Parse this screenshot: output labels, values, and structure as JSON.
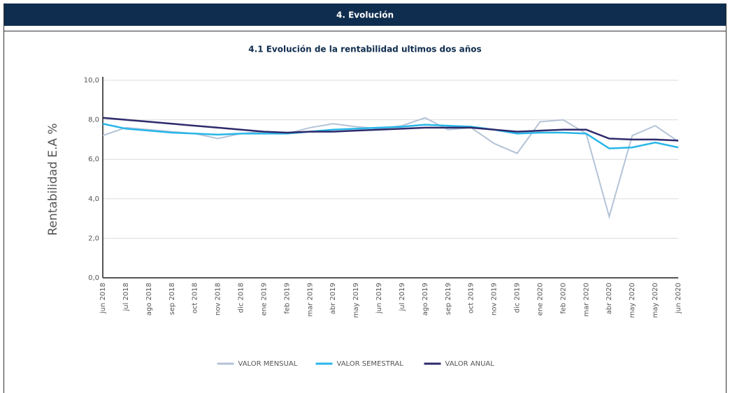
{
  "header": "4. Evolución",
  "chart_data": {
    "type": "line",
    "title": "4.1 Evolución de la rentabilidad ultimos dos años",
    "y_label": "Rentabilidad E.A %",
    "categories": [
      "jun 2018",
      "jul 2018",
      "ago 2018",
      "sep 2018",
      "oct 2018",
      "nov 2018",
      "dic 2018",
      "ene 2019",
      "feb 2019",
      "mar 2019",
      "abr 2019",
      "may 2019",
      "jun 2019",
      "jul 2019",
      "ago 2019",
      "sep 2019",
      "oct 2019",
      "nov 2019",
      "dic 2019",
      "ene 2020",
      "feb 2020",
      "mar 2020",
      "abr 2020",
      "may 2020",
      "may 2020",
      "jun 2020"
    ],
    "series": [
      {
        "name": "VALOR MENSUAL",
        "color": "#b4c3d7",
        "values": [
          7.2,
          7.6,
          7.5,
          7.4,
          7.3,
          7.05,
          7.3,
          7.4,
          7.3,
          7.6,
          7.8,
          7.65,
          7.55,
          7.7,
          8.1,
          7.5,
          7.6,
          6.8,
          6.3,
          7.9,
          8.0,
          7.3,
          3.1,
          7.2,
          7.7,
          6.9
        ]
      },
      {
        "name": "VALOR SEMESTRAL",
        "color": "#29b6e8",
        "values": [
          7.8,
          7.55,
          7.45,
          7.35,
          7.3,
          7.25,
          7.3,
          7.3,
          7.3,
          7.4,
          7.5,
          7.55,
          7.6,
          7.65,
          7.75,
          7.7,
          7.65,
          7.5,
          7.3,
          7.35,
          7.35,
          7.3,
          6.55,
          6.6,
          6.85,
          6.6
        ]
      },
      {
        "name": "VALOR ANUAL",
        "color": "#2e2a6b",
        "values": [
          8.1,
          8.0,
          7.9,
          7.8,
          7.7,
          7.6,
          7.5,
          7.4,
          7.35,
          7.4,
          7.4,
          7.45,
          7.5,
          7.55,
          7.6,
          7.6,
          7.6,
          7.5,
          7.4,
          7.45,
          7.5,
          7.5,
          7.05,
          7.0,
          7.0,
          6.95
        ]
      }
    ],
    "ylim": [
      0,
      10
    ],
    "yticks": [
      {
        "value": 0,
        "label": "0,0"
      },
      {
        "value": 2,
        "label": "2,0"
      },
      {
        "value": 4,
        "label": "4,0"
      },
      {
        "value": 6,
        "label": "6,0"
      },
      {
        "value": 8,
        "label": "8,0"
      },
      {
        "value": 10,
        "label": "10,0"
      }
    ],
    "grid": true,
    "legend": "bottom"
  }
}
